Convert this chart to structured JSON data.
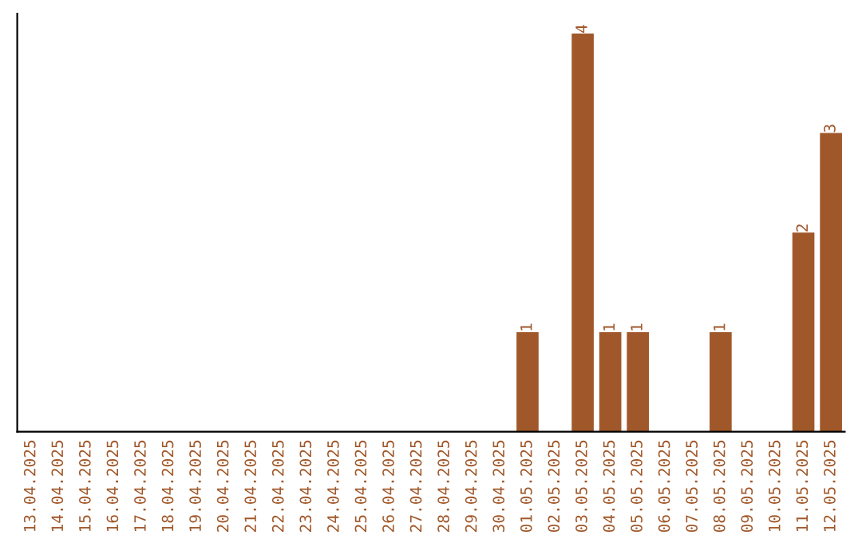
{
  "chart_data": {
    "type": "bar",
    "categories": [
      "13.04.2025",
      "14.04.2025",
      "15.04.2025",
      "16.04.2025",
      "17.04.2025",
      "18.04.2025",
      "19.04.2025",
      "20.04.2025",
      "21.04.2025",
      "22.04.2025",
      "23.04.2025",
      "24.04.2025",
      "25.04.2025",
      "26.04.2025",
      "27.04.2025",
      "28.04.2025",
      "29.04.2025",
      "30.04.2025",
      "01.05.2025",
      "02.05.2025",
      "03.05.2025",
      "04.05.2025",
      "05.05.2025",
      "06.05.2025",
      "07.05.2025",
      "08.05.2025",
      "09.05.2025",
      "10.05.2025",
      "11.05.2025",
      "12.05.2025"
    ],
    "values": [
      null,
      null,
      null,
      null,
      null,
      null,
      null,
      null,
      null,
      null,
      null,
      null,
      null,
      null,
      null,
      null,
      null,
      null,
      1,
      null,
      4,
      1,
      1,
      null,
      null,
      1,
      null,
      null,
      2,
      3
    ],
    "data_labels": true,
    "color": "#a0582a",
    "tick_labels": "x",
    "grid": false,
    "legend": false
  }
}
